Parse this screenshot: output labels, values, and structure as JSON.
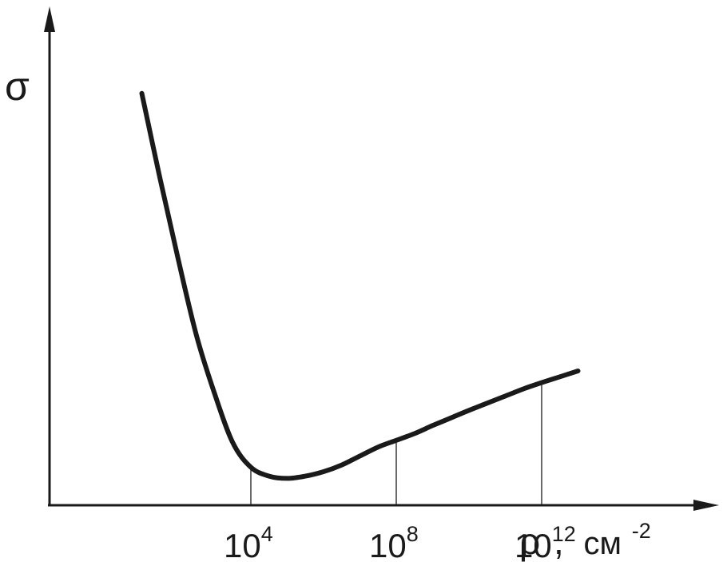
{
  "chart_data": {
    "type": "line",
    "title": "",
    "ylabel": "σ",
    "xlabel": {
      "symbol": "ρ",
      "separator": ",",
      "unit": "см",
      "unit_exponent": "-2"
    },
    "x_scale": "log",
    "ticks": [
      {
        "base": "10",
        "exponent": "4",
        "value": 10000
      },
      {
        "base": "10",
        "exponent": "8",
        "value": 100000000
      },
      {
        "base": "10",
        "exponent": "12",
        "value": 1000000000000
      }
    ],
    "y_ticks_shown": false,
    "grid": false,
    "legend": "none",
    "series": [
      {
        "log10_x": [
          1.0,
          1.5,
          2.0,
          2.5,
          3.0,
          3.5,
          4.0,
          4.5,
          5.0,
          5.5,
          6.0,
          6.5,
          7.0,
          7.5,
          8.0,
          8.5,
          9.0,
          9.5,
          10.0,
          10.5,
          11.0,
          11.5,
          12.0,
          12.5,
          13.0
        ],
        "y_relative": [
          0.92,
          0.73,
          0.55,
          0.38,
          0.25,
          0.14,
          0.085,
          0.065,
          0.06,
          0.065,
          0.075,
          0.09,
          0.11,
          0.13,
          0.145,
          0.16,
          0.178,
          0.195,
          0.212,
          0.228,
          0.244,
          0.26,
          0.274,
          0.287,
          0.3
        ]
      }
    ]
  }
}
